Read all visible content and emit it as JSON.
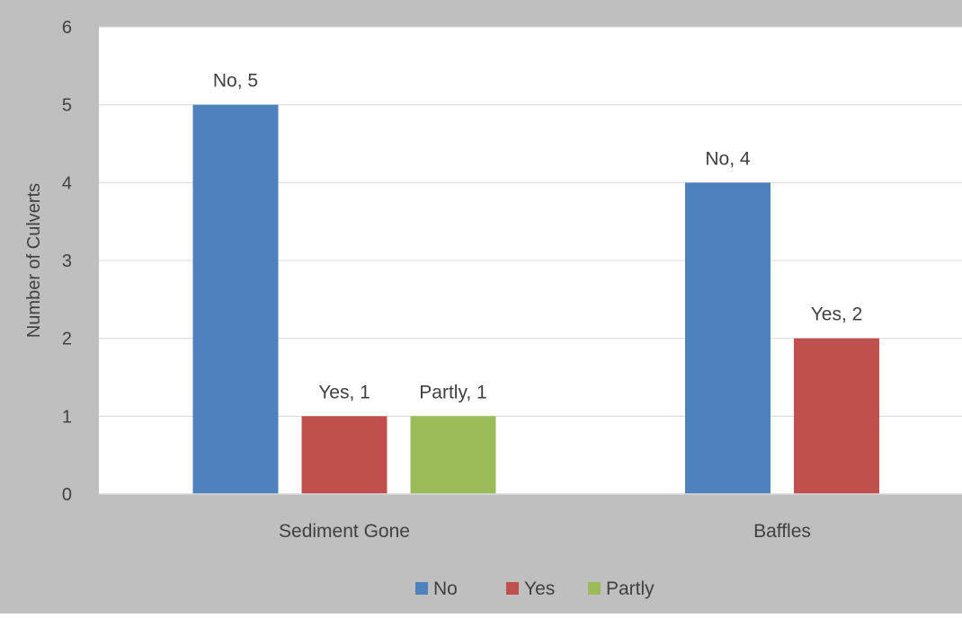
{
  "chart_data": {
    "type": "bar",
    "title": "",
    "xlabel": "",
    "ylabel": "Number of Culverts",
    "ylim": [
      0,
      6
    ],
    "yticks": [
      0,
      1,
      2,
      3,
      4,
      5,
      6
    ],
    "grid": true,
    "legend_position": "bottom",
    "categories": [
      "Sediment Gone",
      "Baffles"
    ],
    "series": [
      {
        "name": "No",
        "color": "#4F81BD",
        "values": [
          5,
          4
        ],
        "labels": [
          "No, 5",
          "No, 4"
        ]
      },
      {
        "name": "Yes",
        "color": "#C0504D",
        "values": [
          1,
          2
        ],
        "labels": [
          "Yes, 1",
          "Yes, 2"
        ]
      },
      {
        "name": "Partly",
        "color": "#9BBB59",
        "values": [
          1,
          null
        ],
        "labels": [
          "Partly, 1",
          null
        ]
      }
    ],
    "colors": {
      "outer_background": "#BFBFBF",
      "plot_background": "#FFFFFF",
      "gridline": "#D9D9D9",
      "text": "#404040"
    }
  }
}
